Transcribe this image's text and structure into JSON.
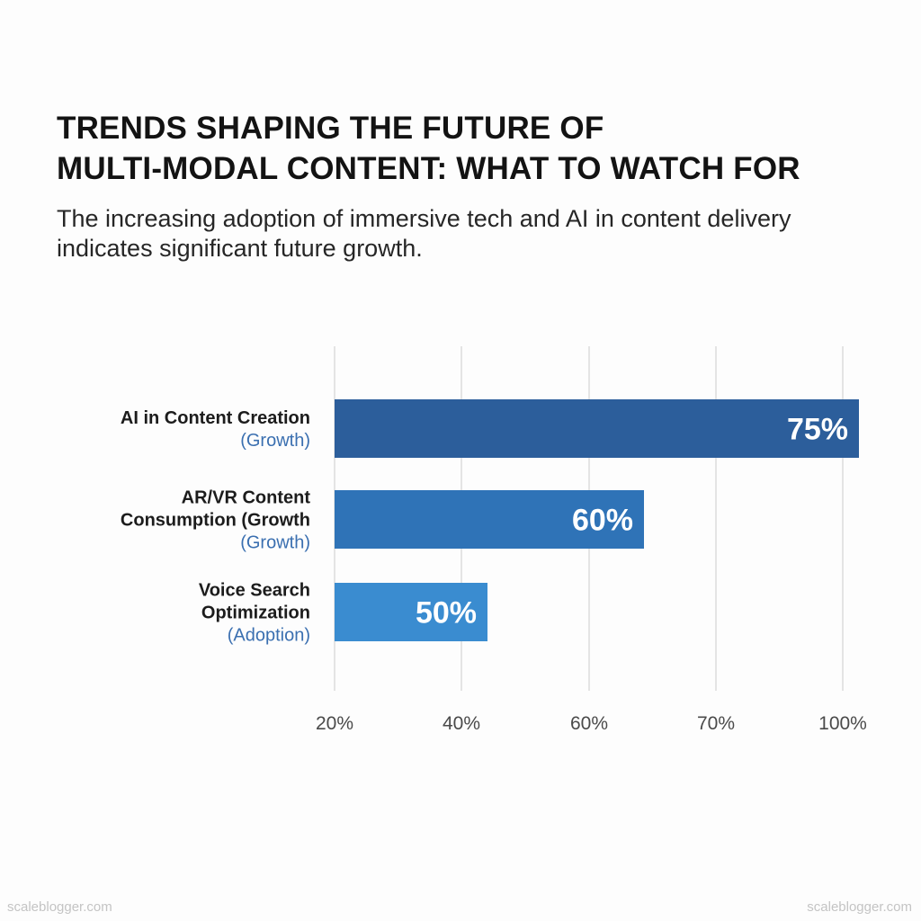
{
  "header": {
    "title_line1": "TRENDS SHAPING THE FUTURE OF",
    "title_line2": "MULTI-MODAL CONTENT: WHAT TO WATCH FOR",
    "subtitle_line1": "The increasing adoption of immersive tech and AI in content delivery",
    "subtitle_line2": "indicates significant future growth."
  },
  "chart_data": {
    "type": "bar",
    "orientation": "horizontal",
    "categories": [
      [
        "AI in Content Creation",
        "(Growth)"
      ],
      [
        "AR/VR Content",
        "Consumption (Growth",
        "(Growth)"
      ],
      [
        "Voice Search",
        "Optimization",
        "(Adoption)"
      ]
    ],
    "values": [
      75,
      60,
      50
    ],
    "value_labels": [
      "75%",
      "60%",
      "50%"
    ],
    "x_ticks": [
      "20%",
      "40%",
      "60%",
      "70%",
      "100%"
    ],
    "grid": true,
    "colors": [
      "#2c5e9b",
      "#2f73b7",
      "#3a8cd0"
    ]
  },
  "footer": {
    "watermark_left": "scaleblogger.com",
    "watermark_right": "scaleblogger.com"
  }
}
